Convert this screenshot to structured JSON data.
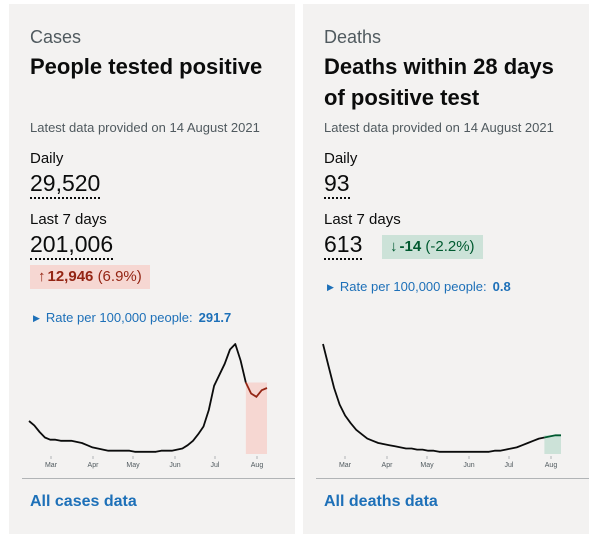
{
  "cases": {
    "kicker": "Cases",
    "heading": "People tested positive",
    "updated": "Latest data provided on 14 August 2021",
    "daily_label": "Daily",
    "daily_value": "29,520",
    "week_label": "Last 7 days",
    "week_value": "201,006",
    "change": {
      "direction": "up",
      "arrow": "↑",
      "value": "12,946",
      "percent": "(6.9%)"
    },
    "rate_label": "Rate per 100,000 people:",
    "rate_value": "291.7",
    "link": "All cases data",
    "highlight_color": "#f6d7d2",
    "recent_line_color": "#942514"
  },
  "deaths": {
    "kicker": "Deaths",
    "heading": "Deaths within 28 days of positive test",
    "updated": "Latest data provided on 14 August 2021",
    "daily_label": "Daily",
    "daily_value": "93",
    "week_label": "Last 7 days",
    "week_value": "613",
    "change": {
      "direction": "down",
      "arrow": "↓",
      "value": "-14",
      "percent": "(-2.2%)"
    },
    "rate_label": "Rate per 100,000 people:",
    "rate_value": "0.8",
    "link": "All deaths data",
    "highlight_color": "#cce2d8",
    "recent_line_color": "#005a30"
  },
  "chart_data": [
    {
      "type": "line",
      "x_tick_labels": [
        "Mar",
        "Apr",
        "May",
        "Jun",
        "Jul",
        "Aug"
      ],
      "series_points_per_month": 30,
      "values": [
        30,
        26,
        20,
        15,
        13,
        13,
        12,
        12,
        12,
        11,
        10,
        8,
        6,
        5,
        4,
        3,
        3,
        3,
        3,
        3,
        2,
        2,
        2,
        2,
        2,
        3,
        3,
        3,
        4,
        5,
        8,
        12,
        18,
        25,
        40,
        62,
        72,
        82,
        95,
        100,
        85,
        65,
        55,
        52,
        58,
        60
      ],
      "highlight_last_points": 4
    },
    {
      "type": "line",
      "x_tick_labels": [
        "Mar",
        "Apr",
        "May",
        "Jun",
        "Jul",
        "Aug"
      ],
      "series_points_per_month": 30,
      "values": [
        100,
        80,
        60,
        45,
        35,
        28,
        22,
        18,
        14,
        12,
        10,
        9,
        8,
        7,
        6,
        5,
        5,
        4,
        4,
        3,
        3,
        2,
        2,
        2,
        2,
        2,
        2,
        2,
        2,
        2,
        2,
        3,
        3,
        4,
        5,
        6,
        8,
        10,
        12,
        14,
        15,
        16,
        17,
        17
      ],
      "highlight_last_points": 3
    }
  ]
}
